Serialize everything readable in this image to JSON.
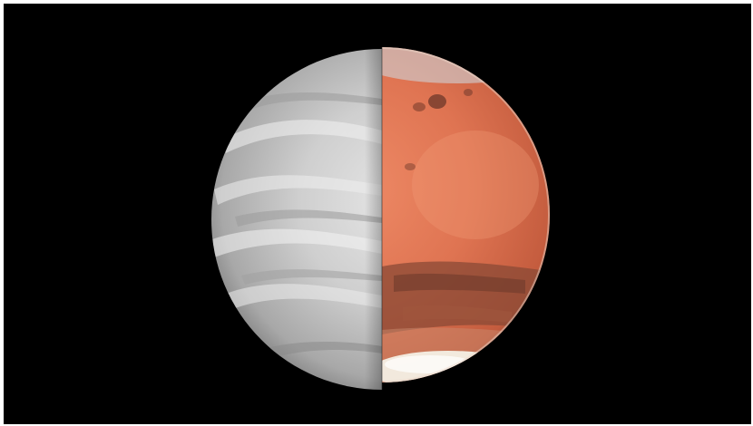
{
  "scene": {
    "subject": "split-planet-composite",
    "left_half": "venus-clouds-grayscale",
    "right_half": "mars-surface-color"
  },
  "colors": {
    "background": "#000000",
    "venus_light": "#e4e4e4",
    "venus_mid": "#b0b0b0",
    "venus_dark": "#6e6e6e",
    "mars_light": "#e8906e",
    "mars_mid": "#d66a4a",
    "mars_dark": "#8a4a36",
    "polar_cap": "#f4f0e6"
  }
}
